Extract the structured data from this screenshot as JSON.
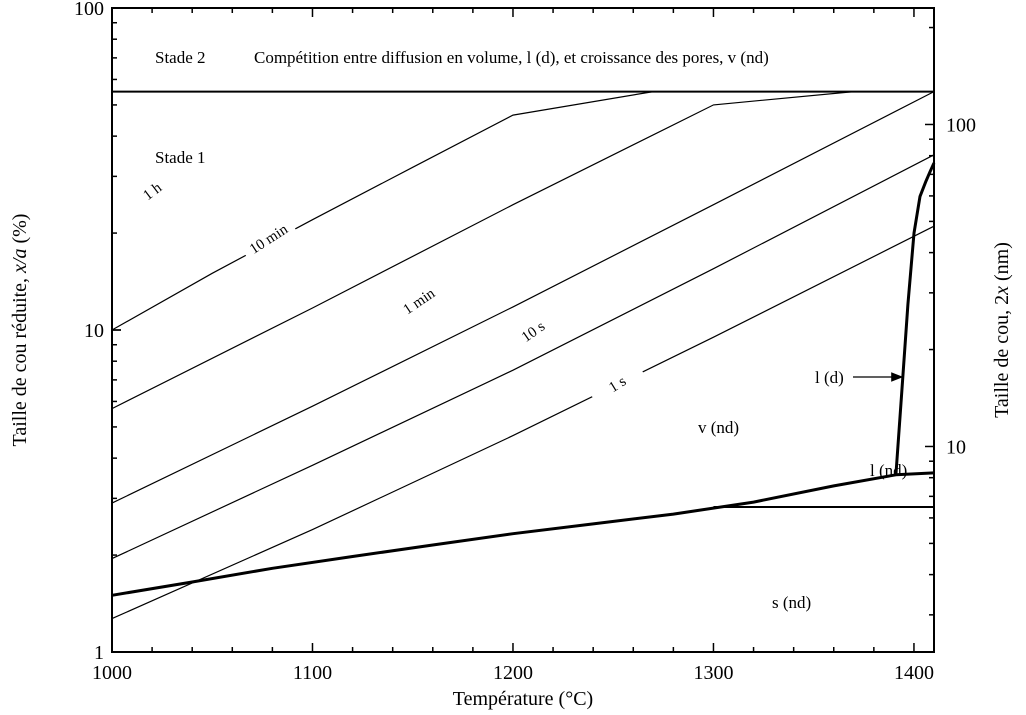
{
  "chart_data": {
    "type": "line",
    "title": "",
    "xlabel": "Température (°C)",
    "ylabel_left": {
      "prefix": "Taille de cou réduite, ",
      "italic": "x/a",
      "suffix": " (%)"
    },
    "ylabel_right": {
      "prefix": "Taille de cou, 2",
      "italic": "x",
      "suffix": " (nm)"
    },
    "xlim": [
      1000,
      1410
    ],
    "ylim": [
      1,
      100
    ],
    "y_scale": "log",
    "y2lim_nm": [
      2.3,
      230
    ],
    "x_ticks": [
      {
        "value": 1000,
        "label": "1000"
      },
      {
        "value": 1100,
        "label": "1100"
      },
      {
        "value": 1200,
        "label": "1200"
      },
      {
        "value": 1300,
        "label": "1300"
      },
      {
        "value": 1400,
        "label": "1400"
      }
    ],
    "y_ticks": [
      {
        "value": 1,
        "label": "1"
      },
      {
        "value": 10,
        "label": "10"
      },
      {
        "value": 100,
        "label": "100"
      }
    ],
    "y2_ticks": [
      {
        "value": 10,
        "label": "10"
      },
      {
        "value": 100,
        "label": "100"
      }
    ],
    "grid": false,
    "legend": "none",
    "stage_boundary_y": 55,
    "contours": [
      {
        "name": "1 s",
        "x": [
          1000,
          1100,
          1200,
          1300,
          1410
        ],
        "y": [
          1.27,
          2.4,
          4.7,
          9.5,
          21.0
        ],
        "label_x": 1252,
        "label_y": 6.8,
        "label_rot": -32
      },
      {
        "name": "10 s",
        "x": [
          1000,
          1100,
          1200,
          1300,
          1410
        ],
        "y": [
          1.95,
          3.8,
          7.5,
          15.5,
          35.0
        ],
        "label_x": 1210,
        "label_y": 9.9,
        "label_rot": -35
      },
      {
        "name": "1 min",
        "x": [
          1000,
          1100,
          1200,
          1300,
          1410
        ],
        "y": [
          2.9,
          5.8,
          11.8,
          24.5,
          55.0
        ],
        "label_x": 1153,
        "label_y": 12.3,
        "label_rot": -34
      },
      {
        "name": "10 min",
        "x": [
          1000,
          1100,
          1200,
          1300,
          1370
        ],
        "y": [
          5.7,
          11.7,
          24.5,
          50.0,
          55.0
        ],
        "label_x": 1078,
        "label_y": 19.2,
        "label_rot": -33
      },
      {
        "name": "1 h",
        "x": [
          1000,
          1050,
          1100,
          1150,
          1200,
          1270
        ],
        "y": [
          10.0,
          15.0,
          22.0,
          32.0,
          46.5,
          55.0
        ],
        "label_x": 1020,
        "label_y": 27.0,
        "label_rot": -37
      }
    ],
    "curves": [
      {
        "name": "boundary_s_upper",
        "x": [
          1000,
          1040,
          1080,
          1120,
          1160,
          1200,
          1240,
          1280,
          1320,
          1360,
          1391,
          1410
        ],
        "y": [
          1.5,
          1.65,
          1.82,
          1.98,
          2.15,
          2.33,
          2.5,
          2.68,
          2.92,
          3.28,
          3.55,
          3.6
        ]
      },
      {
        "name": "boundary_l_nd",
        "x": [
          1300,
          1410
        ],
        "y": [
          2.82,
          2.82
        ]
      },
      {
        "name": "boundary_l_d",
        "x": [
          1391,
          1394,
          1397,
          1400,
          1403,
          1406,
          1408,
          1410
        ],
        "y": [
          3.55,
          6.5,
          12.0,
          20.0,
          26.0,
          29.0,
          31.0,
          33.0
        ]
      }
    ],
    "annotations": {
      "stage2_label": "Stade 2",
      "stage2_text": "Compétition entre diffusion en volume, l (d), et croissance des pores, v (nd)",
      "stage1_label": "Stade 1",
      "region_v_nd": "v (nd)",
      "region_l_nd": "l (nd)",
      "region_s_nd": "s (nd)",
      "region_l_d": "l (d)"
    }
  }
}
